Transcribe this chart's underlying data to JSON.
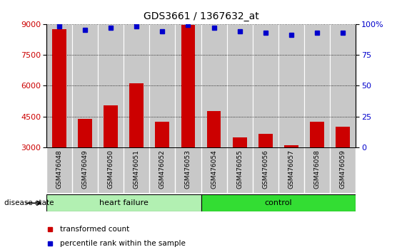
{
  "title": "GDS3661 / 1367632_at",
  "samples": [
    "GSM476048",
    "GSM476049",
    "GSM476050",
    "GSM476051",
    "GSM476052",
    "GSM476053",
    "GSM476054",
    "GSM476055",
    "GSM476056",
    "GSM476057",
    "GSM476058",
    "GSM476059"
  ],
  "bar_values": [
    8750,
    4400,
    5050,
    6100,
    4250,
    8950,
    4750,
    3500,
    3650,
    3100,
    4250,
    4000
  ],
  "dot_values": [
    98,
    95,
    97,
    98,
    94,
    99,
    97,
    94,
    93,
    91,
    93,
    93
  ],
  "ylim_left": [
    3000,
    9000
  ],
  "ylim_right": [
    0,
    100
  ],
  "yticks_left": [
    3000,
    4500,
    6000,
    7500,
    9000
  ],
  "yticks_right": [
    0,
    25,
    50,
    75,
    100
  ],
  "bar_color": "#cc0000",
  "dot_color": "#0000cc",
  "grid_color": "#000000",
  "groups": [
    {
      "label": "heart failure",
      "start": 0,
      "end": 6,
      "color": "#b2f0b2"
    },
    {
      "label": "control",
      "start": 6,
      "end": 12,
      "color": "#33dd33"
    }
  ],
  "disease_state_label": "disease state",
  "legend_items": [
    {
      "label": "transformed count",
      "color": "#cc0000"
    },
    {
      "label": "percentile rank within the sample",
      "color": "#0000cc"
    }
  ],
  "bar_width": 0.55,
  "background_color": "#ffffff",
  "tick_label_color_left": "#cc0000",
  "tick_label_color_right": "#0000cc",
  "cell_bg": "#c8c8c8",
  "cell_border": "#ffffff"
}
